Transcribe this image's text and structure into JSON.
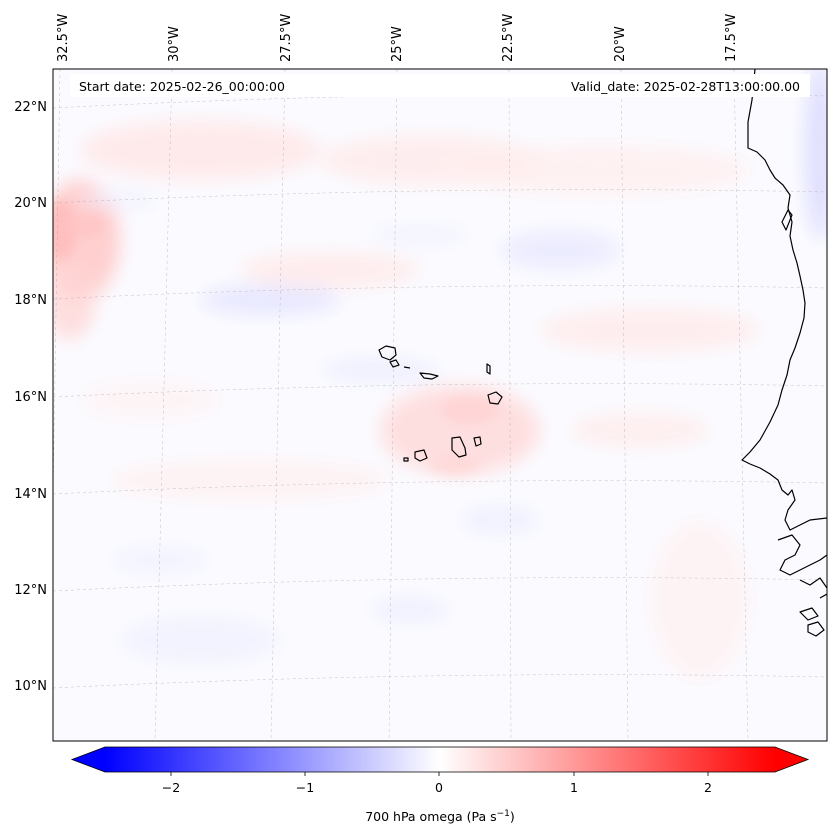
{
  "info": {
    "start_date": "Start date: 2025-02-26_00:00:00",
    "valid_date": "Valid_date: 2025-02-28T13:00:00.00"
  },
  "map": {
    "projection": "lambert-conic",
    "lon_labels": [
      "32.5°W",
      "30°W",
      "27.5°W",
      "25°W",
      "22.5°W",
      "20°W",
      "17.5°W"
    ],
    "lat_labels": [
      "22°N",
      "20°N",
      "18°N",
      "16°N",
      "14°N",
      "12°N",
      "10°N"
    ],
    "grid": "on",
    "coastline_color": "#000000"
  },
  "colorbar": {
    "cmap": "bwr",
    "range": [
      -2.6,
      2.6
    ],
    "extend": "both",
    "tick_labels": [
      "−2",
      "−1",
      "0",
      "1",
      "2"
    ],
    "label_main": "700 hPa omega (Pa s",
    "label_sup": "−1",
    "label_end": ")",
    "colors": {
      "min": "#0000ff",
      "mid": "#ffffff",
      "max": "#ff0000"
    }
  }
}
